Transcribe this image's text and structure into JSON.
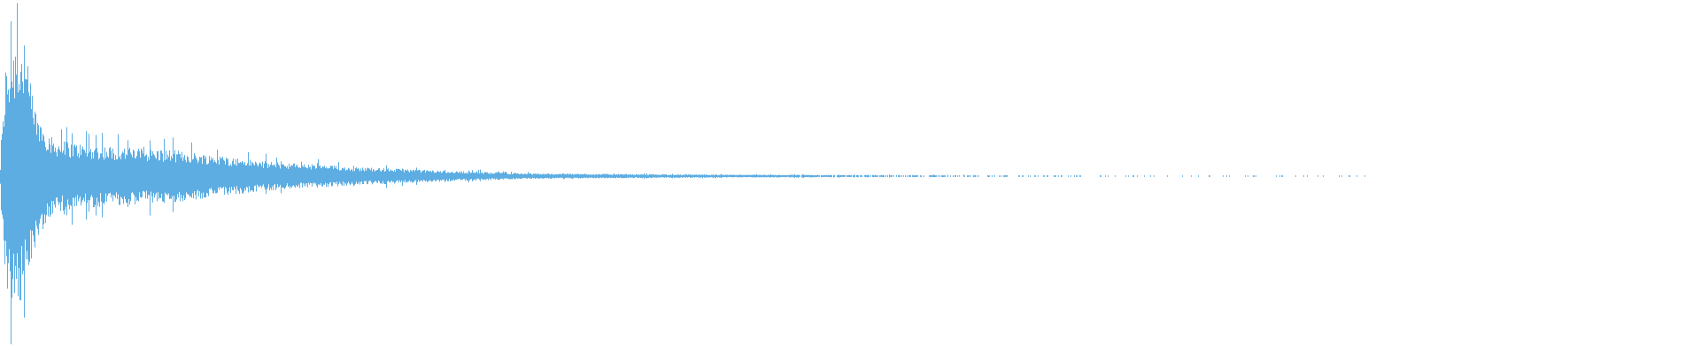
{
  "chart_data": {
    "type": "area",
    "title": "",
    "xlabel": "",
    "ylabel": "",
    "ylim": [
      -1,
      1
    ],
    "grid": false,
    "legend": "none",
    "color": "#5DADE2",
    "background": "#FFFFFF",
    "envelope": [
      [
        0.0,
        0.05
      ],
      [
        0.003,
        0.6
      ],
      [
        0.01,
        0.78
      ],
      [
        0.016,
        0.6
      ],
      [
        0.021,
        0.35
      ],
      [
        0.031,
        0.2
      ],
      [
        0.052,
        0.17
      ],
      [
        0.104,
        0.14
      ],
      [
        0.156,
        0.08
      ],
      [
        0.208,
        0.05
      ],
      [
        0.26,
        0.03
      ],
      [
        0.3125,
        0.015
      ],
      [
        0.417,
        0.008
      ],
      [
        0.573,
        0.005
      ],
      [
        0.656,
        0.003
      ],
      [
        0.802,
        0.002
      ],
      [
        0.803,
        0.0
      ],
      [
        1.0,
        0.0
      ]
    ]
  }
}
